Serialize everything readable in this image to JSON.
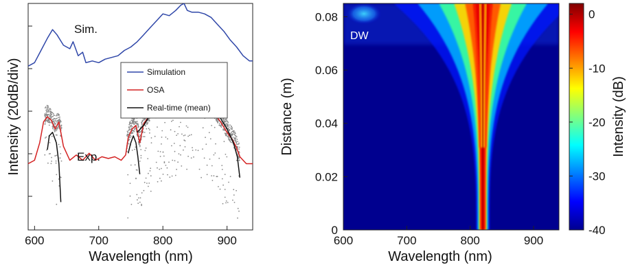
{
  "chart_data": [
    {
      "type": "line",
      "xlabel": "Wavelength (nm)",
      "ylabel": "Intensity (20dB/div)",
      "xlim": [
        590,
        940
      ],
      "ylim": [
        -20,
        110
      ],
      "xticks": [
        "600",
        "700",
        "800",
        "900"
      ],
      "annotations": [
        {
          "text": "Sim.",
          "x": 650,
          "y": 94
        },
        {
          "text": "Exp.",
          "x": 662,
          "y": 30
        }
      ],
      "legend": {
        "placement": "center-right",
        "entries": [
          "Simulation",
          "OSA",
          "Real-time (mean)"
        ]
      },
      "series": [
        {
          "name": "Simulation",
          "color": "#2e46a8",
          "x": [
            590,
            600,
            610,
            620,
            628,
            635,
            645,
            655,
            660,
            668,
            675,
            680,
            690,
            700,
            710,
            720,
            730,
            740,
            750,
            760,
            770,
            780,
            790,
            800,
            810,
            820,
            828,
            833,
            838,
            845,
            855,
            865,
            875,
            885,
            895,
            905,
            915,
            925,
            935,
            940
          ],
          "y": [
            74,
            76,
            83,
            90,
            95,
            92,
            86,
            84,
            88,
            80,
            82,
            76,
            77,
            76,
            78,
            79,
            80,
            83,
            85,
            88,
            92,
            96,
            100,
            104,
            103,
            106,
            109,
            110,
            106,
            105,
            105,
            104,
            102,
            98,
            94,
            89,
            85,
            80,
            77,
            77
          ]
        },
        {
          "name": "OSA",
          "color": "#d42020",
          "x": [
            590,
            600,
            608,
            614,
            620,
            626,
            632,
            638,
            645,
            655,
            665,
            675,
            685,
            695,
            705,
            715,
            725,
            735,
            742,
            746,
            752,
            758,
            764,
            770,
            780,
            790,
            800,
            810,
            820,
            830,
            840,
            850,
            860,
            870,
            880,
            890,
            900,
            908,
            914,
            920,
            930,
            940
          ],
          "y": [
            18,
            20,
            30,
            42,
            45,
            43,
            38,
            42,
            28,
            20,
            23,
            20,
            24,
            20,
            22,
            21,
            22,
            20,
            23,
            33,
            38,
            40,
            30,
            41,
            46,
            50,
            54,
            55,
            56,
            58,
            57,
            56,
            54,
            52,
            47,
            42,
            36,
            32,
            28,
            22,
            18,
            18
          ]
        },
        {
          "name": "Real-time (mean)",
          "color": "#111111",
          "segments": [
            {
              "x": [
                620,
                623,
                628,
                634,
                638,
                641
              ],
              "y": [
                26,
                34,
                36,
                30,
                18,
                -4
              ]
            },
            {
              "x": [
                746,
                750,
                754,
                758,
                761,
                764
              ],
              "y": [
                24,
                30,
                34,
                30,
                22,
                12
              ]
            },
            {
              "x": [
                760,
                770,
                780,
                790,
                800,
                810,
                820,
                830,
                840,
                850,
                860,
                870,
                880,
                890,
                900,
                910,
                916,
                920
              ],
              "y": [
                36,
                40,
                46,
                52,
                56,
                56,
                57,
                58,
                57,
                56,
                55,
                52,
                50,
                44,
                38,
                30,
                22,
                10
              ]
            }
          ]
        }
      ]
    },
    {
      "type": "heatmap",
      "xlabel": "Wavelength (nm)",
      "ylabel": "Distance (m)",
      "xlim": [
        600,
        940
      ],
      "ylim": [
        0,
        0.085
      ],
      "xticks": [
        "600",
        "700",
        "800",
        "900"
      ],
      "yticks": [
        "0",
        "0.02",
        "0.04",
        "0.06",
        "0.08"
      ],
      "annotations": [
        {
          "text": "DW",
          "x": 620,
          "y": 0.077
        }
      ],
      "colorbar": {
        "label": "Intensity (dB)",
        "range": [
          -40,
          2
        ],
        "ticks": [
          "0",
          "-10",
          "-20",
          "-30",
          "-40"
        ],
        "colormap": "jet"
      },
      "center_wavelength": 820
    }
  ]
}
